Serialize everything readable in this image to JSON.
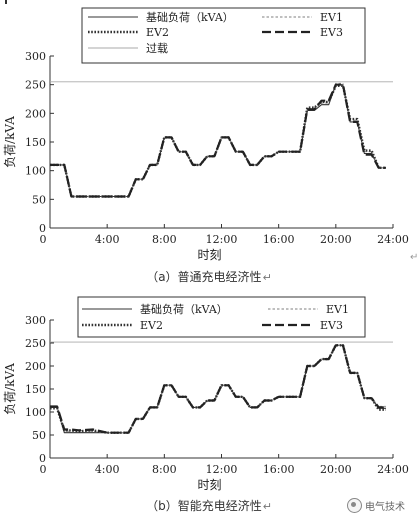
{
  "chart_data": [
    {
      "type": "line",
      "ylabel": "负荷/kVA",
      "xlabel": "时刻",
      "ylim": [
        0,
        300
      ],
      "xlim": [
        0,
        24
      ],
      "yticks": [
        "0",
        "50",
        "100",
        "150",
        "200",
        "250",
        "300"
      ],
      "xticks": [
        "0",
        "4:00",
        "8:00",
        "12:00",
        "16:00",
        "20:00",
        "24:00"
      ],
      "grid": false,
      "legend": "top",
      "series": [
        {
          "name": "基础负荷（kVA）",
          "style": "solid",
          "color": "#333333",
          "x": [
            0,
            1,
            1.5,
            2,
            3,
            4,
            5,
            5.5,
            6,
            6.5,
            7,
            7.5,
            8,
            8.5,
            9,
            9.5,
            10,
            10.5,
            11,
            11.5,
            12,
            12.5,
            13,
            13.5,
            14,
            14.5,
            15,
            15.5,
            16,
            16.5,
            17,
            17.5,
            18,
            18.5,
            19,
            19.5,
            20,
            20.5,
            21,
            21.5,
            22,
            22.5,
            23,
            23.5
          ],
          "values": [
            110,
            110,
            55,
            55,
            55,
            55,
            55,
            55,
            85,
            85,
            110,
            110,
            158,
            158,
            133,
            133,
            110,
            110,
            125,
            125,
            158,
            158,
            133,
            133,
            110,
            110,
            125,
            125,
            133,
            133,
            133,
            133,
            205,
            205,
            215,
            215,
            250,
            250,
            185,
            185,
            130,
            130,
            105,
            105
          ]
        },
        {
          "name": "EV1",
          "style": "dotted",
          "color": "#999999",
          "x": [
            0,
            1,
            1.5,
            2,
            3,
            4,
            5,
            5.5,
            6,
            6.5,
            7,
            7.5,
            8,
            8.5,
            9,
            9.5,
            10,
            10.5,
            11,
            11.5,
            12,
            12.5,
            13,
            13.5,
            14,
            14.5,
            15,
            15.5,
            16,
            16.5,
            17,
            17.5,
            18,
            18.5,
            19,
            19.5,
            20,
            20.5,
            21,
            21.5,
            22,
            22.5,
            23,
            23.5
          ],
          "values": [
            110,
            110,
            55,
            55,
            55,
            55,
            55,
            55,
            85,
            85,
            110,
            110,
            158,
            158,
            133,
            133,
            110,
            110,
            125,
            125,
            158,
            158,
            133,
            133,
            110,
            110,
            125,
            125,
            133,
            133,
            133,
            133,
            208,
            208,
            218,
            218,
            252,
            252,
            188,
            188,
            133,
            133,
            105,
            105
          ]
        },
        {
          "name": "EV2",
          "style": "dotted-bold",
          "color": "#333333",
          "x": [
            0,
            1,
            1.5,
            2,
            3,
            4,
            5,
            5.5,
            6,
            6.5,
            7,
            7.5,
            8,
            8.5,
            9,
            9.5,
            10,
            10.5,
            11,
            11.5,
            12,
            12.5,
            13,
            13.5,
            14,
            14.5,
            15,
            15.5,
            16,
            16.5,
            17,
            17.5,
            18,
            18.5,
            19,
            19.5,
            20,
            20.5,
            21,
            21.5,
            22,
            22.5,
            23,
            23.5
          ],
          "values": [
            110,
            110,
            55,
            55,
            55,
            55,
            55,
            55,
            85,
            85,
            110,
            110,
            158,
            158,
            133,
            133,
            110,
            110,
            125,
            125,
            158,
            158,
            133,
            133,
            110,
            110,
            125,
            125,
            133,
            133,
            133,
            133,
            210,
            210,
            220,
            220,
            248,
            248,
            190,
            190,
            135,
            135,
            105,
            105
          ]
        },
        {
          "name": "EV3",
          "style": "dashed",
          "color": "#222222",
          "x": [
            0,
            1,
            1.5,
            2,
            3,
            4,
            5,
            5.5,
            6,
            6.5,
            7,
            7.5,
            8,
            8.5,
            9,
            9.5,
            10,
            10.5,
            11,
            11.5,
            12,
            12.5,
            13,
            13.5,
            14,
            14.5,
            15,
            15.5,
            16,
            16.5,
            17,
            17.5,
            18,
            18.5,
            19,
            19.5,
            20,
            20.5,
            21,
            21.5,
            22,
            22.5,
            23,
            23.5
          ],
          "values": [
            110,
            110,
            55,
            55,
            55,
            55,
            55,
            55,
            85,
            85,
            110,
            110,
            158,
            158,
            133,
            133,
            110,
            110,
            125,
            125,
            158,
            158,
            133,
            133,
            110,
            110,
            125,
            125,
            133,
            133,
            133,
            133,
            207,
            207,
            222,
            222,
            250,
            250,
            185,
            185,
            128,
            128,
            105,
            105
          ]
        },
        {
          "name": "过载",
          "style": "thin",
          "color": "#aaaaaa",
          "x": [
            0,
            24
          ],
          "values": [
            255,
            255
          ]
        }
      ],
      "caption": "（a）普通充电经济性"
    },
    {
      "type": "line",
      "ylabel": "负荷/kVA",
      "xlabel": "时刻",
      "ylim": [
        0,
        300
      ],
      "xlim": [
        0,
        24
      ],
      "yticks": [
        "0",
        "50",
        "100",
        "150",
        "200",
        "250",
        "300"
      ],
      "xticks": [
        "0",
        "4:00",
        "8:00",
        "12:00",
        "16:00",
        "20:00",
        "24:00"
      ],
      "grid": false,
      "legend": "top",
      "series": [
        {
          "name": "基础负荷（kVA）",
          "style": "solid",
          "color": "#333333",
          "x": [
            0,
            0.5,
            1,
            1.5,
            2,
            3,
            4,
            5,
            5.5,
            6,
            6.5,
            7,
            7.5,
            8,
            8.5,
            9,
            9.5,
            10,
            10.5,
            11,
            11.5,
            12,
            12.5,
            13,
            13.5,
            14,
            14.5,
            15,
            15.5,
            16,
            16.5,
            17,
            17.5,
            18,
            18.5,
            19,
            19.5,
            20,
            20.5,
            21,
            21.5,
            22,
            22.5,
            23,
            23.5
          ],
          "values": [
            110,
            110,
            55,
            55,
            55,
            55,
            55,
            55,
            55,
            85,
            85,
            110,
            110,
            158,
            158,
            133,
            133,
            110,
            110,
            125,
            125,
            158,
            158,
            133,
            133,
            110,
            110,
            125,
            125,
            133,
            133,
            133,
            133,
            200,
            200,
            215,
            215,
            245,
            245,
            185,
            185,
            130,
            130,
            108,
            108
          ]
        },
        {
          "name": "EV1",
          "style": "dotted",
          "color": "#999999",
          "x": [
            0,
            0.5,
            1,
            1.5,
            2,
            3,
            4,
            5,
            5.5,
            6,
            6.5,
            7,
            7.5,
            8,
            8.5,
            9,
            9.5,
            10,
            10.5,
            11,
            11.5,
            12,
            12.5,
            13,
            13.5,
            14,
            14.5,
            15,
            15.5,
            16,
            16.5,
            17,
            17.5,
            18,
            18.5,
            19,
            19.5,
            20,
            20.5,
            21,
            21.5,
            22,
            22.5,
            23,
            23.5
          ],
          "values": [
            112,
            112,
            58,
            58,
            60,
            58,
            55,
            55,
            55,
            85,
            85,
            110,
            110,
            158,
            158,
            133,
            133,
            110,
            110,
            125,
            125,
            158,
            158,
            133,
            133,
            110,
            110,
            125,
            125,
            133,
            133,
            133,
            133,
            200,
            200,
            215,
            215,
            245,
            245,
            185,
            185,
            130,
            130,
            112,
            112
          ]
        },
        {
          "name": "EV2",
          "style": "dotted-bold",
          "color": "#333333",
          "x": [
            0,
            0.5,
            1,
            1.5,
            2,
            3,
            4,
            5,
            5.5,
            6,
            6.5,
            7,
            7.5,
            8,
            8.5,
            9,
            9.5,
            10,
            10.5,
            11,
            11.5,
            12,
            12.5,
            13,
            13.5,
            14,
            14.5,
            15,
            15.5,
            16,
            16.5,
            17,
            17.5,
            18,
            18.5,
            19,
            19.5,
            20,
            20.5,
            21,
            21.5,
            22,
            22.5,
            23,
            23.5
          ],
          "values": [
            108,
            108,
            60,
            60,
            58,
            60,
            55,
            55,
            55,
            85,
            85,
            110,
            110,
            158,
            158,
            133,
            133,
            110,
            110,
            125,
            125,
            158,
            158,
            133,
            133,
            110,
            110,
            125,
            125,
            133,
            133,
            133,
            133,
            200,
            200,
            215,
            215,
            245,
            245,
            185,
            185,
            130,
            130,
            105,
            105
          ]
        },
        {
          "name": "EV3",
          "style": "dashed",
          "color": "#222222",
          "x": [
            0,
            0.5,
            1,
            1.5,
            2,
            3,
            4,
            5,
            5.5,
            6,
            6.5,
            7,
            7.5,
            8,
            8.5,
            9,
            9.5,
            10,
            10.5,
            11,
            11.5,
            12,
            12.5,
            13,
            13.5,
            14,
            14.5,
            15,
            15.5,
            16,
            16.5,
            17,
            17.5,
            18,
            18.5,
            19,
            19.5,
            20,
            20.5,
            21,
            21.5,
            22,
            22.5,
            23,
            23.5
          ],
          "values": [
            112,
            112,
            62,
            62,
            60,
            62,
            55,
            55,
            55,
            85,
            85,
            110,
            110,
            158,
            158,
            133,
            133,
            110,
            110,
            125,
            125,
            158,
            158,
            133,
            133,
            110,
            110,
            125,
            125,
            133,
            133,
            133,
            133,
            200,
            200,
            215,
            215,
            245,
            245,
            185,
            185,
            130,
            130,
            110,
            110
          ]
        },
        {
          "name": "",
          "style": "thin",
          "color": "#aaaaaa",
          "x": [
            0,
            24
          ],
          "values": [
            252,
            252
          ]
        }
      ],
      "caption": "（b）智能充电经济性"
    }
  ],
  "captions": {
    "a": "（a）普通充电经济性",
    "b": "（b）智能充电经济性",
    "return_mark": "↵"
  },
  "watermark": {
    "text": "电气技术"
  }
}
